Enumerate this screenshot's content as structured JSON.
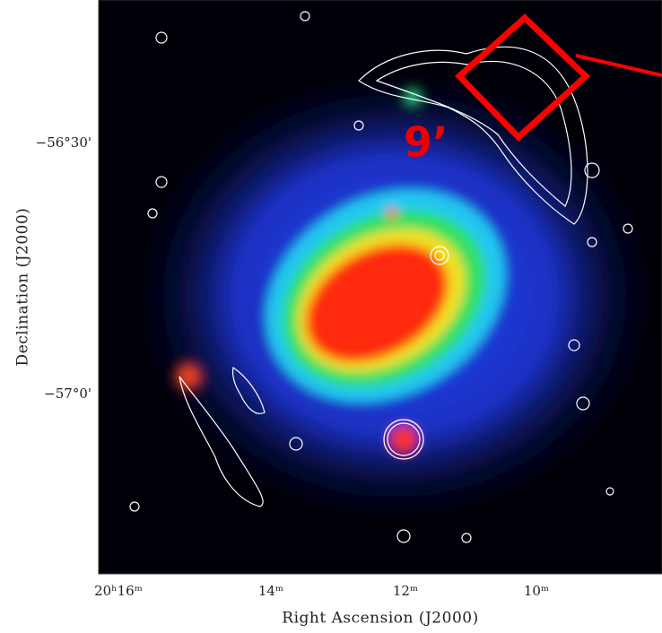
{
  "figure": {
    "y_axis_label": "Declination (J2000)",
    "x_axis_label": "Right Ascension (J2000)",
    "y_ticks": [
      "−56°30'",
      "−57°0'"
    ],
    "x_ticks": [
      "20ʰ16ᵐ",
      "14ᵐ",
      "12ᵐ",
      "10ᵐ"
    ],
    "annotation": "9’"
  }
}
